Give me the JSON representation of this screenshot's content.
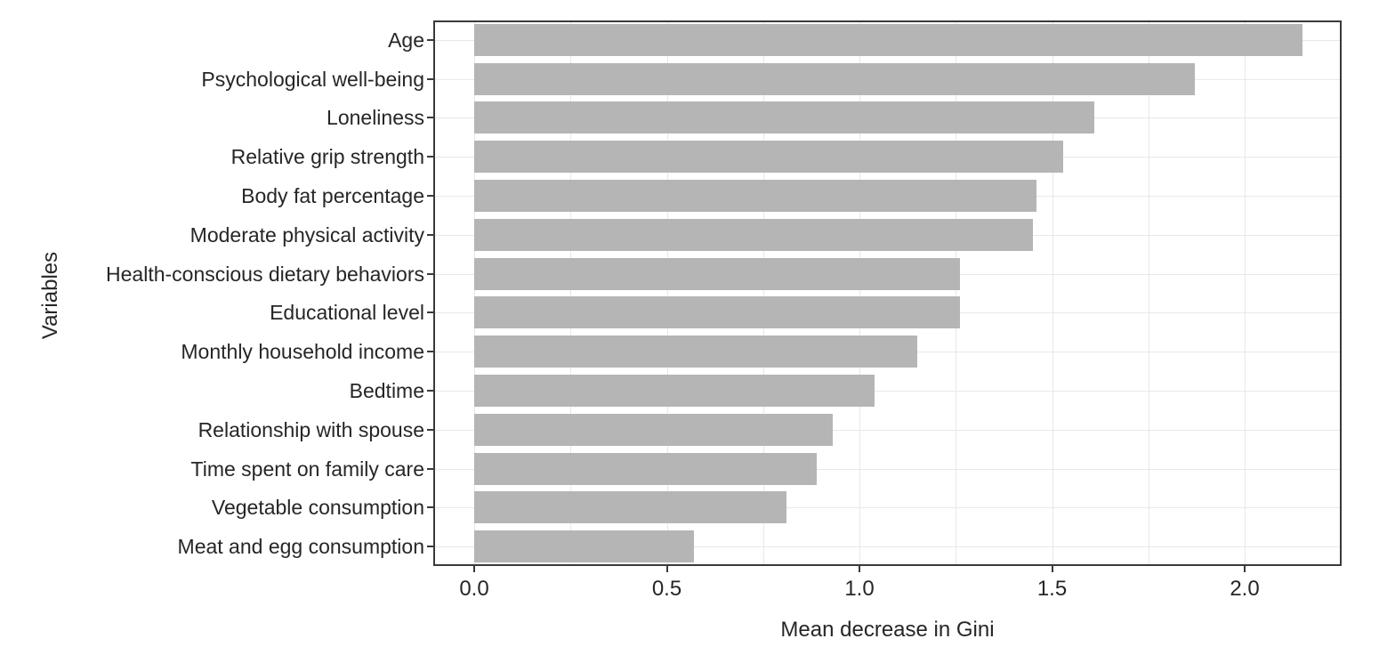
{
  "chart_data": {
    "type": "bar",
    "orientation": "horizontal",
    "xlabel": "Mean decrease in Gini",
    "ylabel": "Variables",
    "categories": [
      "Age",
      "Psychological well-being",
      "Loneliness",
      "Relative grip strength",
      "Body fat percentage",
      "Moderate physical activity",
      "Health-conscious dietary behaviors",
      "Educational level",
      "Monthly household income",
      "Bedtime",
      "Relationship with spouse",
      "Time spent on family care",
      "Vegetable consumption",
      "Meat and egg consumption"
    ],
    "values": [
      2.15,
      1.87,
      1.61,
      1.53,
      1.46,
      1.45,
      1.26,
      1.26,
      1.15,
      1.04,
      0.93,
      0.89,
      0.81,
      0.57
    ],
    "xlim": [
      0,
      2.25
    ],
    "xticks": [
      0.0,
      0.5,
      1.0,
      1.5,
      2.0
    ],
    "xtick_labels": [
      "0.0",
      "0.5",
      "1.0",
      "1.5",
      "2.0"
    ],
    "grid": {
      "vertical_step": 0.25,
      "vertical_max": 2.25,
      "horizontal": "per-category",
      "color": "#e8e8e8"
    },
    "legend": "none",
    "colors": {
      "bar_fill": "#b5b5b5",
      "panel_border": "#3a3a3a",
      "gridline": "#e8e8e8",
      "text": "#262626",
      "background": "#ffffff"
    }
  }
}
